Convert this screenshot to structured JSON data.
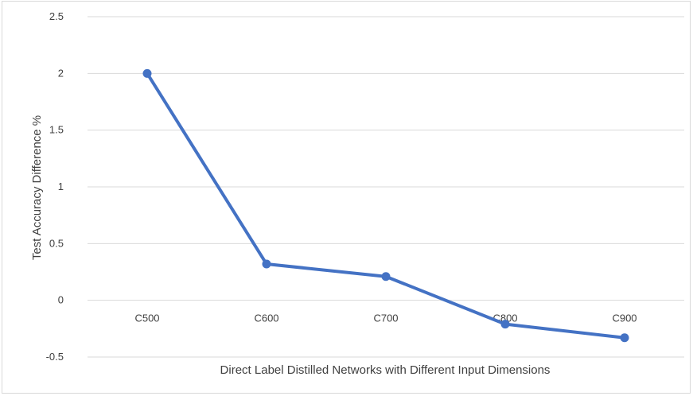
{
  "chart_data": {
    "type": "line",
    "categories": [
      "C500",
      "C600",
      "C700",
      "C800",
      "C900"
    ],
    "series": [
      {
        "values": [
          2.0,
          0.32,
          0.21,
          -0.21,
          -0.33
        ],
        "color": "#4472c4"
      }
    ],
    "title": "",
    "xlabel": "Direct Label Distilled Networks with Different Input Dimensions",
    "ylabel": "Test Accuracy Difference %",
    "ylim": [
      -0.5,
      2.5
    ],
    "yticks": [
      "2.5",
      "2",
      "1.5",
      "1",
      "0.5",
      "0",
      "-0.5"
    ],
    "grid": true,
    "legend": "none"
  }
}
